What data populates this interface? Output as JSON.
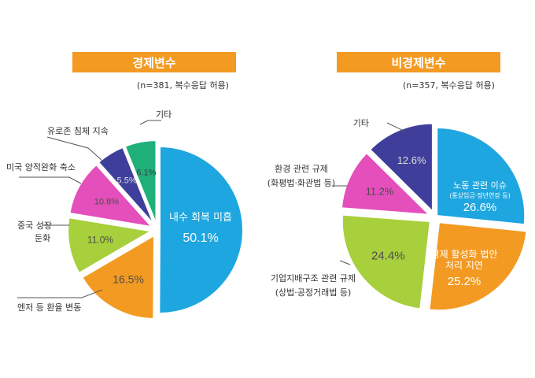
{
  "chart_data": [
    {
      "type": "pie",
      "title": "경제변수",
      "subtitle": "(n=381, 복수응답 허용)",
      "colors": {
        "title_bg": "#f39a22"
      },
      "slices": [
        {
          "label": "내수 회복 미흡",
          "value": 50.1,
          "color": "#1ea6e0",
          "text_color": "#ffffff"
        },
        {
          "label": "엔저 등 환율 변동",
          "value": 16.5,
          "color": "#f39a22",
          "text_color": "#4d4d4d"
        },
        {
          "label": "중국 성장 둔화",
          "value": 11.0,
          "color": "#a8cf3c",
          "text_color": "#4d4d4d"
        },
        {
          "label": "미국 양적완화 축소",
          "value": 10.8,
          "color": "#e44fbb",
          "text_color": "#4d4d4d"
        },
        {
          "label": "유로존 침체 지속",
          "value": 5.5,
          "color": "#3f3f9b",
          "text_color": "#dddddd"
        },
        {
          "label": "기타",
          "value": 6.1,
          "color": "#1fb07a",
          "text_color": "#3d3d3d"
        }
      ]
    },
    {
      "type": "pie",
      "title": "비경제변수",
      "subtitle": "(n=357, 복수응답 허용)",
      "colors": {
        "title_bg": "#f39a22"
      },
      "slices": [
        {
          "label": "노동 관련 이슈",
          "sublabel": "(통상임금·정년연장 등)",
          "value": 26.6,
          "color": "#1ea6e0",
          "text_color": "#ffffff"
        },
        {
          "label": "경제 활성화 법안 처리 지연",
          "value": 25.2,
          "color": "#f39a22",
          "text_color": "#ffffff"
        },
        {
          "label": "기업지배구조 관련 규제",
          "sublabel": "(상법·공정거래법 등)",
          "value": 24.4,
          "color": "#a8cf3c",
          "text_color": "#4d4d4d"
        },
        {
          "label": "환경 관련 규제",
          "sublabel": "(화평법·화관법 등)",
          "value": 11.2,
          "color": "#e44fbb",
          "text_color": "#4d4d4d"
        },
        {
          "label": "기타",
          "value": 12.6,
          "color": "#3f3f9b",
          "text_color": "#dddddd"
        }
      ]
    }
  ]
}
